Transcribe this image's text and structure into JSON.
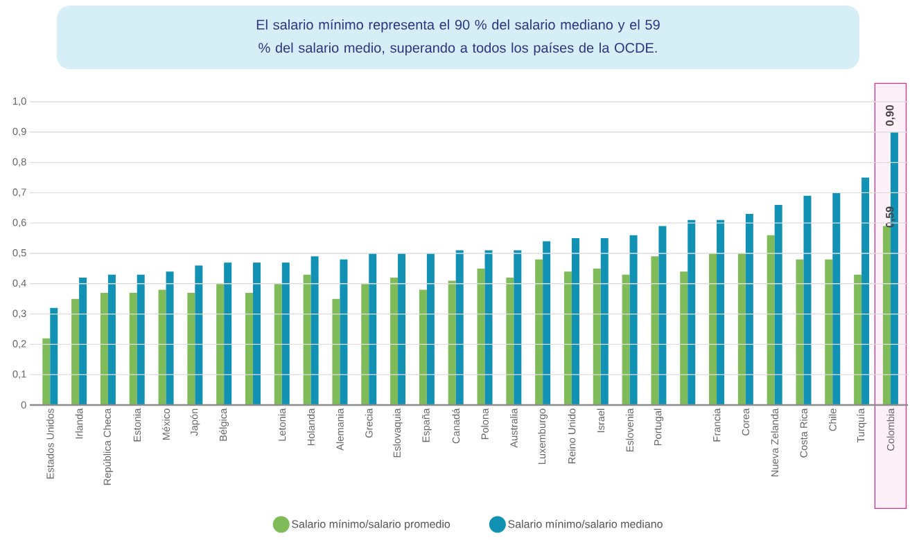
{
  "chart_data": {
    "type": "bar",
    "title": "El salario mínimo representa el 90 % del salario mediano y el 59 % del salario medio, superando a todos los países de la OCDE.",
    "categories": [
      "Estados Unidos",
      "Irlanda",
      "República Checa",
      "Estonia",
      "México",
      "Japón",
      "Bélgica",
      null,
      "Letonia",
      "Holanda",
      "Alemania",
      "Grecia",
      "Eslovaquia",
      "España",
      "Canadá",
      "Polona",
      "Australia",
      "Luxemburgo",
      "Reino Unido",
      "Israel",
      "Eslovenia",
      "Portugal",
      null,
      "Francia",
      "Corea",
      "Nueva Zelanda",
      "Costa Rica",
      "Chile",
      "Turquía",
      "Colombia"
    ],
    "series": [
      {
        "name": "Salario mínimo/salario promedio",
        "color": "#80bb5a",
        "values": [
          0.22,
          0.35,
          0.37,
          0.37,
          0.38,
          0.37,
          0.4,
          0.37,
          0.4,
          0.43,
          0.35,
          0.4,
          0.42,
          0.38,
          0.41,
          0.45,
          0.42,
          0.48,
          0.44,
          0.45,
          0.43,
          0.49,
          0.44,
          0.5,
          0.5,
          0.56,
          0.48,
          0.48,
          0.43,
          0.59
        ],
        "value_labels": [
          null,
          null,
          null,
          null,
          null,
          null,
          null,
          null,
          null,
          null,
          null,
          null,
          null,
          null,
          null,
          null,
          null,
          null,
          null,
          null,
          null,
          null,
          null,
          null,
          null,
          null,
          null,
          null,
          null,
          "0,59"
        ]
      },
      {
        "name": "Salario mínimo/salario mediano",
        "color": "#1192b5",
        "values": [
          0.32,
          0.42,
          0.43,
          0.43,
          0.44,
          0.46,
          0.47,
          0.47,
          0.47,
          0.49,
          0.48,
          0.5,
          0.5,
          0.5,
          0.51,
          0.51,
          0.51,
          0.54,
          0.55,
          0.55,
          0.56,
          0.59,
          0.61,
          0.61,
          0.63,
          0.66,
          0.69,
          0.7,
          0.75,
          0.9
        ],
        "value_labels": [
          null,
          null,
          null,
          null,
          null,
          null,
          null,
          null,
          null,
          null,
          null,
          null,
          null,
          null,
          null,
          null,
          null,
          null,
          null,
          null,
          null,
          null,
          null,
          null,
          null,
          null,
          null,
          null,
          null,
          "0,90"
        ]
      }
    ],
    "ylim": [
      0,
      1.0
    ],
    "yticks": [
      0,
      {
        "value": 0.1,
        "label": "0,1"
      },
      {
        "value": 0.2,
        "label": "0,2"
      },
      {
        "value": 0.3,
        "label": "0,3"
      },
      {
        "value": 0.4,
        "label": "0,4"
      },
      {
        "value": 0.5,
        "label": "0,5"
      },
      {
        "value": 0.6,
        "label": "0,6"
      },
      {
        "value": 0.7,
        "label": "0,7"
      },
      {
        "value": 0.8,
        "label": "0,8"
      },
      {
        "value": 0.9,
        "label": "0,9"
      },
      {
        "value": 1.0,
        "label": "1,0"
      }
    ],
    "bands": [
      {
        "axis": "x",
        "from": "Colombia",
        "to": "Colombia",
        "color": "#d6338a"
      }
    ],
    "grid": "y",
    "legend": "bottom",
    "marker": "circle"
  }
}
